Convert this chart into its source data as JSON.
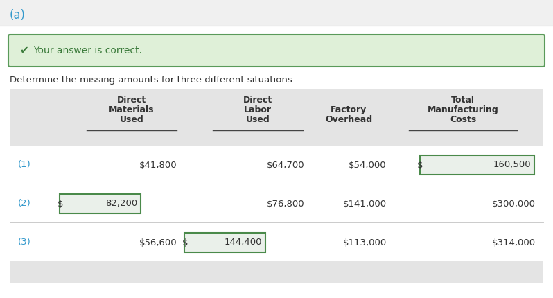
{
  "title_label": "(a)",
  "correct_msg": "Your answer is correct.",
  "description": "Determine the missing amounts for three different situations.",
  "col_headers": [
    [
      "Direct",
      "Materials",
      "Used"
    ],
    [
      "Direct",
      "Labor",
      "Used"
    ],
    [
      "Factory",
      "Overhead"
    ],
    [
      "Total",
      "Manufacturing",
      "Costs"
    ]
  ],
  "rows": [
    {
      "label": "(1)",
      "dm": "$41,800",
      "dm_box": false,
      "dl": "$64,700",
      "dl_box": false,
      "fo": "$54,000",
      "tmc": "160,500",
      "tmc_box": true
    },
    {
      "label": "(2)",
      "dm": "82,200",
      "dm_box": true,
      "dl": "$76,800",
      "dl_box": false,
      "fo": "$141,000",
      "tmc": "$300,000",
      "tmc_box": false
    },
    {
      "label": "(3)",
      "dm": "$56,600",
      "dm_box": false,
      "dl": "144,400",
      "dl_box": true,
      "fo": "$113,000",
      "tmc": "$314,000",
      "tmc_box": false
    }
  ],
  "page_bg": "#f0f0f0",
  "white_bg": "#ffffff",
  "header_bg": "#e4e4e4",
  "green_bg": "#dff0d8",
  "green_border": "#5a9a5a",
  "green_text": "#3a7a3a",
  "teal_text": "#3399cc",
  "dark_text": "#333333",
  "box_border": "#4a8a4a",
  "box_fill": "#eaf0ea",
  "underline_color": "#444444",
  "sep_color": "#cccccc"
}
